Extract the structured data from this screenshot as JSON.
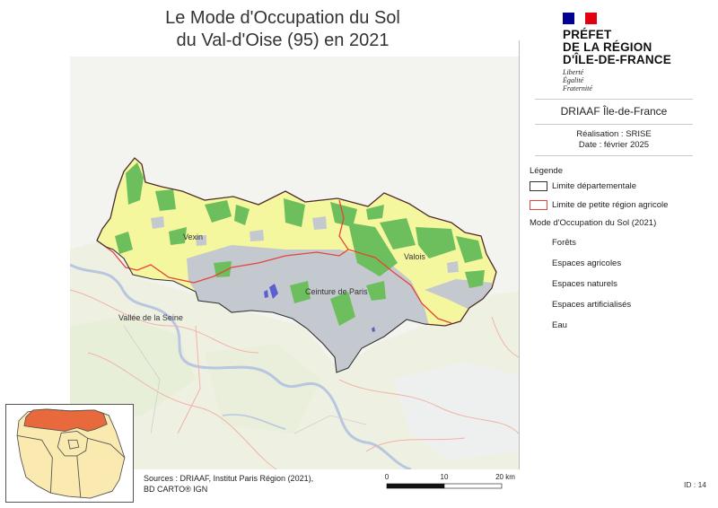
{
  "title": {
    "line1": "Le Mode d'Occupation du Sol",
    "line2": "du Val-d'Oise (95) en 2021"
  },
  "logo": {
    "line1": "PRÉFET",
    "line2": "DE LA RÉGION",
    "line3": "D'ÎLE-DE-FRANCE",
    "motto1": "Liberté",
    "motto2": "Égalité",
    "motto3": "Fraternité",
    "flag_colors": [
      "#000091",
      "#ffffff",
      "#e1000f"
    ]
  },
  "org": "DRIAAF Île-de-France",
  "credits": {
    "line1": "Réalisation : SRISE",
    "line2": "Date : février 2025"
  },
  "legend": {
    "title": "Légende",
    "boundary_dept": "Limite départementale",
    "boundary_region": "Limite de petite région agricole",
    "mos_title": "Mode d'Occupation du Sol (2021)",
    "classes": [
      {
        "label": "Forêts",
        "color": "#6cbf5c"
      },
      {
        "label": "Espaces agricoles",
        "color": "#f5f79f"
      },
      {
        "label": "Espaces naturels",
        "color": "#dff0cf"
      },
      {
        "label": "Espaces artificialisés",
        "color": "#c4c9cf"
      },
      {
        "label": "Eau",
        "color": "#5a5fd3"
      }
    ]
  },
  "map_labels": {
    "vexin": "Vexin",
    "valois": "Valois",
    "ceinture": "Ceinture de Paris",
    "seine": "Vallée de la Seine"
  },
  "sources": {
    "line1": "Sources : DRIAAF, Institut Paris Région (2021),",
    "line2": "BD CARTO® IGN"
  },
  "scale": {
    "t0": "0",
    "t1": "10",
    "t2": "20 km"
  },
  "id_label": "ID : 14"
}
